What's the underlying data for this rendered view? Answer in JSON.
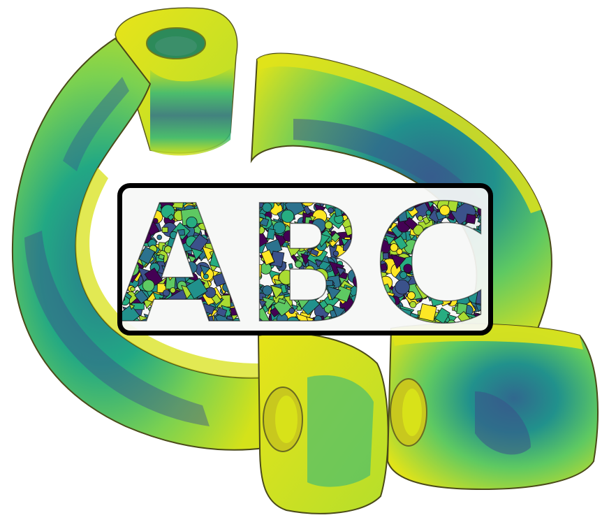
{
  "logo": {
    "text": "ABC",
    "palette": [
      "#440154",
      "#3b528b",
      "#21918c",
      "#5ec962",
      "#fde725",
      "#2c728e",
      "#27ad81",
      "#aadc32"
    ]
  },
  "mesh": {
    "colormap": "viridis",
    "outline_color": "#3a3a1e"
  }
}
